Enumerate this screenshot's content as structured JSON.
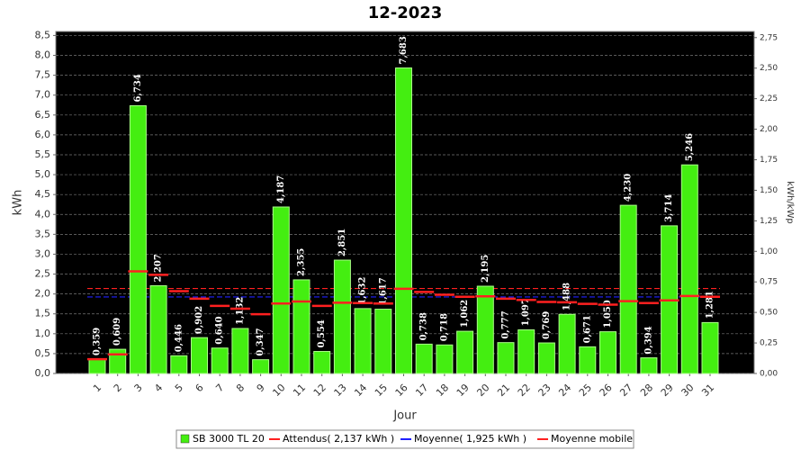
{
  "chart_data": {
    "type": "bar",
    "title": "12-2023",
    "x_label": "Jour",
    "y_label": "kWh",
    "y2_label": "kWh/kWp",
    "categories": [
      "1",
      "2",
      "3",
      "4",
      "5",
      "6",
      "7",
      "8",
      "9",
      "10",
      "11",
      "12",
      "13",
      "14",
      "15",
      "16",
      "17",
      "18",
      "19",
      "20",
      "21",
      "22",
      "23",
      "24",
      "25",
      "26",
      "27",
      "28",
      "29",
      "30",
      "31"
    ],
    "series": [
      {
        "name": "SB 3000 TL 20",
        "color": "#44ee11",
        "values": [
          0.359,
          0.609,
          6.734,
          2.207,
          0.446,
          0.902,
          0.64,
          1.132,
          0.347,
          4.187,
          2.355,
          0.554,
          2.851,
          1.632,
          1.617,
          7.683,
          0.738,
          0.718,
          1.062,
          2.195,
          0.777,
          1.097,
          0.769,
          1.488,
          0.671,
          1.05,
          4.23,
          0.394,
          3.714,
          5.246,
          1.281
        ],
        "value_labels": [
          "0,359",
          "0,609",
          "6,734",
          "2,207",
          "0,446",
          "0,902",
          "0,640",
          "1,132",
          "0,347",
          "4,187",
          "2,355",
          "0,554",
          "2,851",
          "1,632",
          "1,617",
          "7,683",
          "0,738",
          "0,718",
          "1,062",
          "2,195",
          "0,777",
          "1,097",
          "0,769",
          "1,488",
          "0,671",
          "1,050",
          "4,230",
          "0,394",
          "3,714",
          "5,246",
          "1,281"
        ]
      },
      {
        "name": "Moyenne mobile",
        "color": "#ff2020",
        "values": [
          0.36,
          0.48,
          2.57,
          2.48,
          2.07,
          1.88,
          1.7,
          1.63,
          1.49,
          1.76,
          1.81,
          1.7,
          1.78,
          1.77,
          1.76,
          2.13,
          2.05,
          1.98,
          1.93,
          1.94,
          1.88,
          1.85,
          1.8,
          1.79,
          1.75,
          1.73,
          1.82,
          1.77,
          1.84,
          1.95,
          1.93
        ]
      }
    ],
    "reference_lines": [
      {
        "name": "Attendus( 2,137 kWh )",
        "value": 2.137,
        "color": "#ff2020"
      },
      {
        "name": "Moyenne( 1,925 kWh )",
        "value": 1.925,
        "color": "#2020ff"
      }
    ],
    "ylim": [
      0,
      8.6
    ],
    "yticks": [
      {
        "value": 0,
        "label": "0,0"
      },
      {
        "value": 0.5,
        "label": "0,5"
      },
      {
        "value": 1,
        "label": "1,0"
      },
      {
        "value": 1.5,
        "label": "1,5"
      },
      {
        "value": 2,
        "label": "2,0"
      },
      {
        "value": 2.5,
        "label": "2,5"
      },
      {
        "value": 3,
        "label": "3,0"
      },
      {
        "value": 3.5,
        "label": "3,5"
      },
      {
        "value": 4,
        "label": "4,0"
      },
      {
        "value": 4.5,
        "label": "4,5"
      },
      {
        "value": 5,
        "label": "5,0"
      },
      {
        "value": 5.5,
        "label": "5,5"
      },
      {
        "value": 6,
        "label": "6,0"
      },
      {
        "value": 6.5,
        "label": "6,5"
      },
      {
        "value": 7,
        "label": "7,0"
      },
      {
        "value": 7.5,
        "label": "7,5"
      },
      {
        "value": 8,
        "label": "8,0"
      },
      {
        "value": 8.5,
        "label": "8,5"
      }
    ],
    "y2lim": [
      0,
      2.8
    ],
    "y2ticks": [
      {
        "value": 0,
        "label": "0,00"
      },
      {
        "value": 0.25,
        "label": "0,25"
      },
      {
        "value": 0.5,
        "label": "0,50"
      },
      {
        "value": 0.75,
        "label": "0,75"
      },
      {
        "value": 1,
        "label": "1,00"
      },
      {
        "value": 1.25,
        "label": "1,25"
      },
      {
        "value": 1.5,
        "label": "1,50"
      },
      {
        "value": 1.75,
        "label": "1,75"
      },
      {
        "value": 2,
        "label": "2,00"
      },
      {
        "value": 2.25,
        "label": "2,25"
      },
      {
        "value": 2.5,
        "label": "2,50"
      },
      {
        "value": 2.75,
        "label": "2,75"
      }
    ],
    "grid": true,
    "background": "#000000",
    "legend": "bottom"
  }
}
